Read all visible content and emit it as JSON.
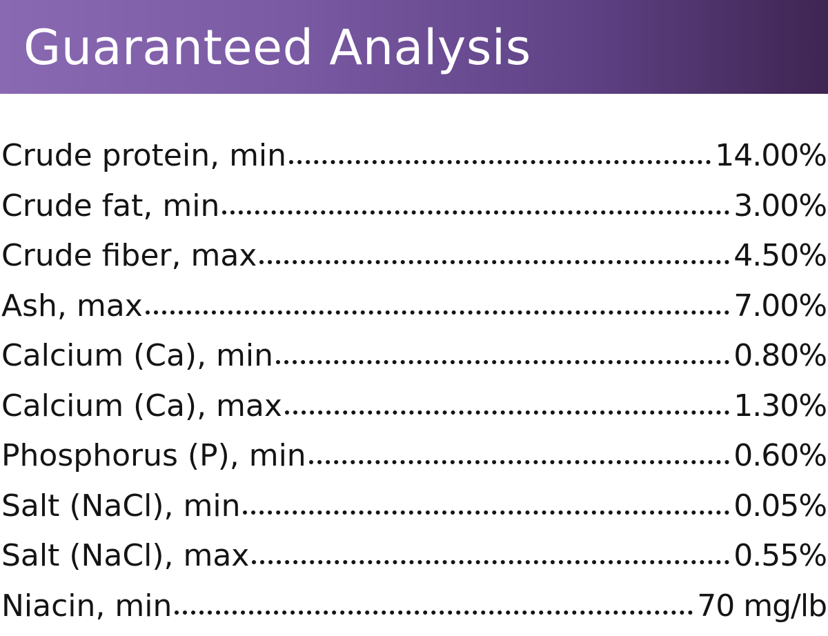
{
  "header": {
    "title": "Guaranteed Analysis",
    "color_start": "#8a69b3",
    "color_end": "#3e2552"
  },
  "analysis": {
    "rows": [
      {
        "label": "Crude protein, min",
        "value": "14.00%"
      },
      {
        "label": "Crude fat, min",
        "value": "3.00%"
      },
      {
        "label": "Crude fiber, max",
        "value": "4.50%"
      },
      {
        "label": "Ash, max",
        "value": "7.00%"
      },
      {
        "label": "Calcium (Ca), min",
        "value": "0.80%"
      },
      {
        "label": "Calcium (Ca), max",
        "value": "1.30%"
      },
      {
        "label": "Phosphorus (P), min",
        "value": "0.60%"
      },
      {
        "label": "Salt (NaCl), min",
        "value": "0.05%"
      },
      {
        "label": "Salt (NaCl), max",
        "value": "0.55%"
      },
      {
        "label": "Niacin, min",
        "value": "70 mg/lb"
      }
    ]
  }
}
